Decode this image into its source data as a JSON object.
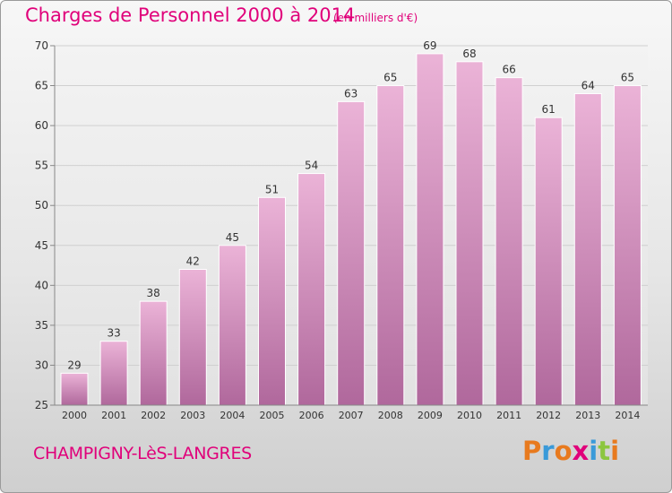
{
  "header": {
    "title": "Charges de Personnel 2000 à 2014",
    "subtitle": "(en milliers d'€)"
  },
  "footer": {
    "place": "CHAMPIGNY-LèS-LANGRES",
    "brand": "Proxiti",
    "brand_colors": [
      "#e87a1e",
      "#3a9ad9",
      "#e87a1e",
      "#e0007a",
      "#3a9ad9",
      "#8cc63f",
      "#e87a1e"
    ]
  },
  "colors": {
    "bar_top": "#ebb3d7",
    "bar_bottom": "#b0689c",
    "accent": "#e0007a"
  },
  "chart_data": {
    "type": "bar",
    "title": "Charges de Personnel 2000 à 2014",
    "subtitle": "(en milliers d'€)",
    "categories": [
      "2000",
      "2001",
      "2002",
      "2003",
      "2004",
      "2005",
      "2006",
      "2007",
      "2008",
      "2009",
      "2010",
      "2011",
      "2012",
      "2013",
      "2014"
    ],
    "values": [
      29,
      33,
      38,
      42,
      45,
      51,
      54,
      63,
      65,
      69,
      68,
      66,
      61,
      64,
      65
    ],
    "yticks": [
      25,
      30,
      35,
      40,
      45,
      50,
      55,
      60,
      65,
      70
    ],
    "ylim": [
      25,
      70
    ],
    "grid": true,
    "xlabel": "",
    "ylabel": ""
  }
}
